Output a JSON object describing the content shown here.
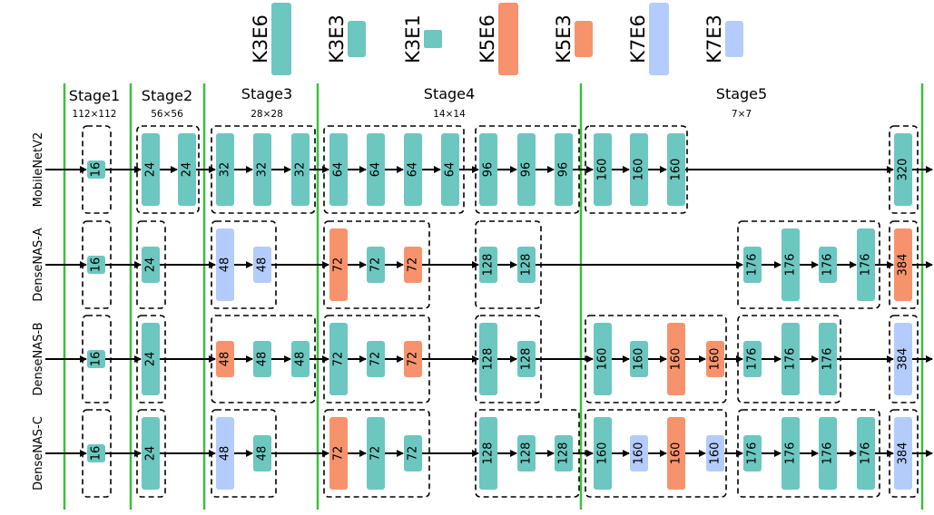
{
  "colors": {
    "K3E6": "#6cc7c0",
    "K3E3": "#6cc7c0",
    "K3E1": "#6cc7c0",
    "K5E6": "#f7936c",
    "K5E3": "#f7936c",
    "K7E6": "#b3ccfb",
    "K7E3": "#b3ccfb",
    "stage_line": "#3cbf3c",
    "arrow": "#000000"
  },
  "legend": [
    {
      "key": "K3E6",
      "label": "K3E6"
    },
    {
      "key": "K3E3",
      "label": "K3E3"
    },
    {
      "key": "K3E1",
      "label": "K3E1"
    },
    {
      "key": "K5E6",
      "label": "K5E6"
    },
    {
      "key": "K5E3",
      "label": "K5E3"
    },
    {
      "key": "K7E6",
      "label": "K7E6"
    },
    {
      "key": "K7E3",
      "label": "K7E3"
    }
  ],
  "stages": [
    {
      "name": "Stage1",
      "resolution": "112×112"
    },
    {
      "name": "Stage2",
      "resolution": "56×56"
    },
    {
      "name": "Stage3",
      "resolution": "28×28"
    },
    {
      "name": "Stage4",
      "resolution": "14×14"
    },
    {
      "name": "Stage5",
      "resolution": "7×7"
    }
  ],
  "rows": [
    {
      "name": "MobileNetV2",
      "groups": [
        {
          "blocks": [
            {
              "label": "16",
              "type": "K3E1"
            }
          ]
        },
        {
          "blocks": [
            {
              "label": "24",
              "type": "K3E6"
            },
            {
              "label": "24",
              "type": "K3E6"
            }
          ]
        },
        {
          "blocks": [
            {
              "label": "32",
              "type": "K3E6"
            },
            {
              "label": "32",
              "type": "K3E6"
            },
            {
              "label": "32",
              "type": "K3E6"
            }
          ]
        },
        {
          "blocks": [
            {
              "label": "64",
              "type": "K3E6"
            },
            {
              "label": "64",
              "type": "K3E6"
            },
            {
              "label": "64",
              "type": "K3E6"
            },
            {
              "label": "64",
              "type": "K3E6"
            }
          ]
        },
        {
          "blocks": [
            {
              "label": "96",
              "type": "K3E6"
            },
            {
              "label": "96",
              "type": "K3E6"
            },
            {
              "label": "96",
              "type": "K3E6"
            }
          ]
        },
        {
          "blocks": [
            {
              "label": "160",
              "type": "K3E6"
            },
            {
              "label": "160",
              "type": "K3E6"
            },
            {
              "label": "160",
              "type": "K3E6"
            }
          ]
        },
        {
          "blocks": [
            {
              "label": "320",
              "type": "K3E6"
            }
          ]
        }
      ]
    },
    {
      "name": "DenseNAS-A",
      "groups": [
        {
          "blocks": [
            {
              "label": "16",
              "type": "K3E1"
            }
          ]
        },
        {
          "blocks": [
            {
              "label": "24",
              "type": "K3E3"
            }
          ]
        },
        {
          "blocks": [
            {
              "label": "48",
              "type": "K7E6"
            },
            {
              "label": "48",
              "type": "K7E3"
            }
          ]
        },
        {
          "blocks": [
            {
              "label": "72",
              "type": "K5E6"
            },
            {
              "label": "72",
              "type": "K3E3"
            },
            {
              "label": "72",
              "type": "K5E3"
            }
          ]
        },
        {
          "blocks": [
            {
              "label": "128",
              "type": "K3E3"
            },
            {
              "label": "128",
              "type": "K3E3"
            }
          ]
        },
        {
          "blocks": [
            {
              "label": "176",
              "type": "K3E3"
            },
            {
              "label": "176",
              "type": "K3E6"
            },
            {
              "label": "176",
              "type": "K3E3"
            },
            {
              "label": "176",
              "type": "K3E6"
            }
          ]
        },
        {
          "blocks": [
            {
              "label": "384",
              "type": "K5E6"
            }
          ]
        }
      ]
    },
    {
      "name": "DenseNAS-B",
      "groups": [
        {
          "blocks": [
            {
              "label": "16",
              "type": "K3E1"
            }
          ]
        },
        {
          "blocks": [
            {
              "label": "24",
              "type": "K3E6"
            }
          ]
        },
        {
          "blocks": [
            {
              "label": "48",
              "type": "K5E3"
            },
            {
              "label": "48",
              "type": "K3E3"
            },
            {
              "label": "48",
              "type": "K3E3"
            }
          ]
        },
        {
          "blocks": [
            {
              "label": "72",
              "type": "K3E6"
            },
            {
              "label": "72",
              "type": "K3E3"
            },
            {
              "label": "72",
              "type": "K5E3"
            }
          ]
        },
        {
          "blocks": [
            {
              "label": "128",
              "type": "K3E6"
            },
            {
              "label": "128",
              "type": "K3E3"
            }
          ]
        },
        {
          "blocks": [
            {
              "label": "160",
              "type": "K3E6"
            },
            {
              "label": "160",
              "type": "K3E3"
            },
            {
              "label": "160",
              "type": "K5E6"
            },
            {
              "label": "160",
              "type": "K5E3"
            }
          ]
        },
        {
          "blocks": [
            {
              "label": "176",
              "type": "K3E3"
            },
            {
              "label": "176",
              "type": "K3E6"
            },
            {
              "label": "176",
              "type": "K3E6"
            }
          ]
        },
        {
          "blocks": [
            {
              "label": "384",
              "type": "K7E6"
            }
          ]
        }
      ]
    },
    {
      "name": "DenseNAS-C",
      "groups": [
        {
          "blocks": [
            {
              "label": "16",
              "type": "K3E1"
            }
          ]
        },
        {
          "blocks": [
            {
              "label": "24",
              "type": "K3E6"
            }
          ]
        },
        {
          "blocks": [
            {
              "label": "48",
              "type": "K7E6"
            },
            {
              "label": "48",
              "type": "K3E3"
            }
          ]
        },
        {
          "blocks": [
            {
              "label": "72",
              "type": "K5E6"
            },
            {
              "label": "72",
              "type": "K3E6"
            },
            {
              "label": "72",
              "type": "K3E3"
            }
          ]
        },
        {
          "blocks": [
            {
              "label": "128",
              "type": "K3E6"
            },
            {
              "label": "128",
              "type": "K3E3"
            },
            {
              "label": "128",
              "type": "K3E3"
            }
          ]
        },
        {
          "blocks": [
            {
              "label": "160",
              "type": "K3E6"
            },
            {
              "label": "160",
              "type": "K7E3"
            },
            {
              "label": "160",
              "type": "K5E6"
            },
            {
              "label": "160",
              "type": "K7E3"
            }
          ]
        },
        {
          "blocks": [
            {
              "label": "176",
              "type": "K3E3"
            },
            {
              "label": "176",
              "type": "K3E6"
            },
            {
              "label": "176",
              "type": "K3E6"
            },
            {
              "label": "176",
              "type": "K3E6"
            }
          ]
        },
        {
          "blocks": [
            {
              "label": "384",
              "type": "K7E6"
            }
          ]
        }
      ]
    }
  ]
}
